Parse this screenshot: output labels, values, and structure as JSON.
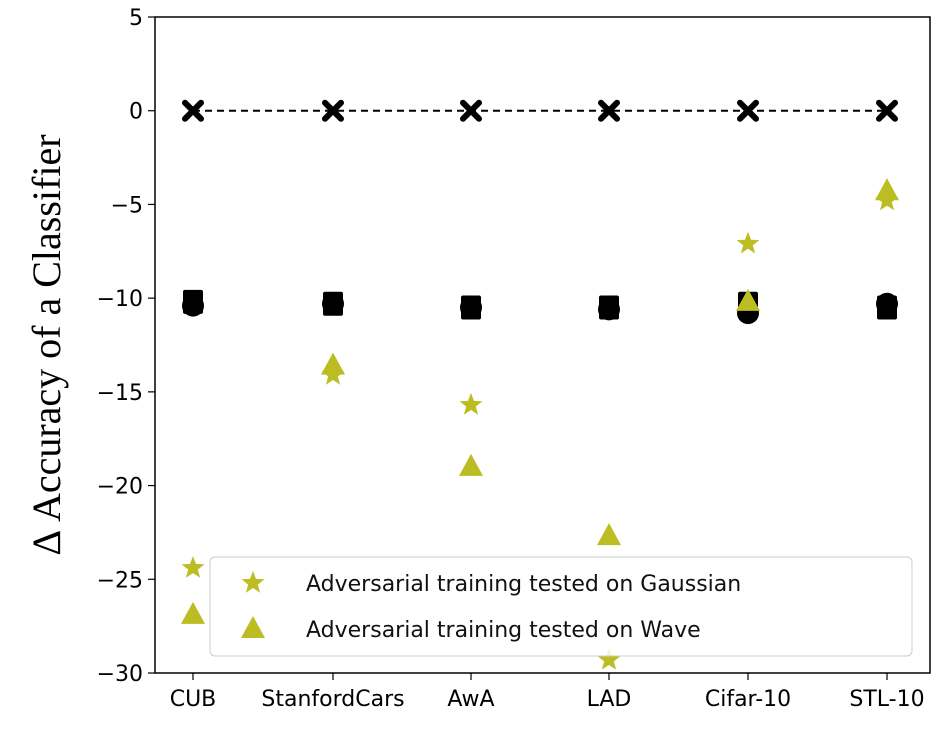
{
  "chart_data": {
    "type": "scatter",
    "title": "",
    "xlabel": "",
    "ylabel": "Δ Accuracy of a Classifier",
    "categories": [
      "CUB",
      "StanfordCars",
      "AwA",
      "LAD",
      "Cifar-10",
      "STL-10"
    ],
    "ylim": [
      -30,
      5
    ],
    "yticks": [
      5,
      0,
      -5,
      -10,
      -15,
      -20,
      -25,
      -30
    ],
    "ytick_labels": [
      "5",
      "0",
      "−5",
      "−10",
      "−15",
      "−20",
      "−25",
      "−30"
    ],
    "grid": false,
    "legend_position": "bottom-right",
    "reference_line": {
      "y": 0,
      "style": "dashed",
      "color": "#000000"
    },
    "series": [
      {
        "name": "Adversarial training tested on Gaussian",
        "marker": "star",
        "color": "#bcbd22",
        "in_legend": true,
        "values": [
          -24.4,
          -14.1,
          -15.7,
          -29.3,
          -7.1,
          -4.8
        ]
      },
      {
        "name": "Adversarial training tested on Wave",
        "marker": "triangle",
        "color": "#bcbd22",
        "in_legend": true,
        "values": [
          -26.9,
          -13.6,
          -19.0,
          -22.7,
          -10.2,
          -4.3
        ]
      },
      {
        "name": "",
        "marker": "x",
        "color": "#000000",
        "in_legend": false,
        "values": [
          0,
          0,
          0,
          0,
          0,
          0
        ]
      },
      {
        "name": "",
        "marker": "circle",
        "color": "#000000",
        "in_legend": false,
        "values": [
          -10.4,
          -10.3,
          -10.5,
          -10.6,
          -10.8,
          -10.3
        ]
      },
      {
        "name": "",
        "marker": "square",
        "color": "#000000",
        "in_legend": false,
        "values": [
          -10.2,
          -10.3,
          -10.5,
          -10.5,
          -10.3,
          -10.5
        ]
      }
    ]
  }
}
